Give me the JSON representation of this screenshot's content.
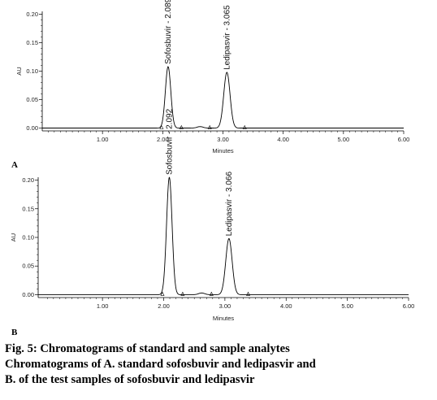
{
  "chart_data": [
    {
      "type": "line",
      "panel_label": "A",
      "xlabel": "Minutes",
      "ylabel": "AU",
      "xlim": [
        0,
        6.0
      ],
      "ylim": [
        -0.005,
        0.205
      ],
      "x_ticks": [
        "1.00",
        "2.00",
        "3.00",
        "4.00",
        "5.00",
        "6.00"
      ],
      "y_ticks": [
        "0.00",
        "0.05",
        "0.10",
        "0.15",
        "0.20"
      ],
      "peaks": [
        {
          "label": "Sofosbuvir - 2.089",
          "rt": 2.089,
          "height": 0.108,
          "width": 0.045
        },
        {
          "label": "Ledipasvir - 3.065",
          "rt": 3.065,
          "height": 0.098,
          "width": 0.052
        }
      ],
      "minor_peaks": [
        {
          "rt": 2.62,
          "height": 0.0025,
          "width": 0.05
        }
      ],
      "integration_markers": [
        1.98,
        2.31,
        2.78,
        3.36
      ]
    },
    {
      "type": "line",
      "panel_label": "B",
      "xlabel": "Minutes",
      "ylabel": "AU",
      "xlim": [
        -0.05,
        6.0
      ],
      "ylim": [
        -0.005,
        0.205
      ],
      "x_ticks": [
        "1.00",
        "2.00",
        "3.00",
        "4.00",
        "5.00",
        "6.00"
      ],
      "y_ticks": [
        "0.00",
        "0.05",
        "0.10",
        "0.15",
        "0.20"
      ],
      "peaks": [
        {
          "label": "Sofosbuvir - 2.092",
          "rt": 2.092,
          "height": 0.205,
          "width": 0.045
        },
        {
          "label": "Ledipasvir - 3.066",
          "rt": 3.066,
          "height": 0.098,
          "width": 0.052
        }
      ],
      "minor_peaks": [
        {
          "rt": 2.62,
          "height": 0.003,
          "width": 0.05
        }
      ],
      "integration_markers": [
        1.98,
        2.31,
        2.78,
        3.38
      ]
    }
  ],
  "caption": {
    "line1": "Fig. 5: Chromatograms of standard and sample analytes",
    "line2": "Chromatograms of A. standard sofosbuvir and ledipasvir and",
    "line3": "B. of the test samples of sofosbuvir and ledipasvir"
  }
}
